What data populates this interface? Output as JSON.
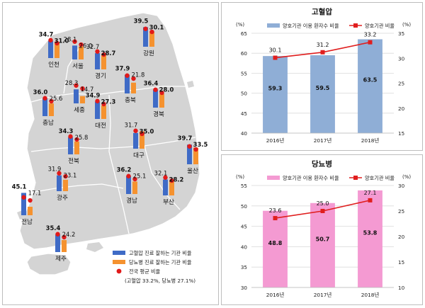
{
  "map": {
    "legend": {
      "bp_label": "고혈압 진료 잘하는 기관 비율",
      "db_label": "당뇨병 진료 잘하는 기관 비율",
      "avg_label": "전국 평균 비율",
      "avg_note": "(고혈압 33.2%, 당뇨병 27.1%)"
    },
    "regions": [
      {
        "name": "인천",
        "bp": "34.7",
        "db": "31.0",
        "bp_bold": true,
        "db_bold": true
      },
      {
        "name": "서울",
        "bp": "28.1",
        "db": "26.0",
        "bp_bold": false,
        "db_bold": false
      },
      {
        "name": "경기",
        "bp": "32.7",
        "db": "28.7",
        "bp_bold": false,
        "db_bold": true
      },
      {
        "name": "강원",
        "bp": "39.5",
        "db": "30.1",
        "bp_bold": true,
        "db_bold": true
      },
      {
        "name": "충북",
        "bp": "37.9",
        "db": "21.8",
        "bp_bold": true,
        "db_bold": false
      },
      {
        "name": "세종",
        "bp": "28.3",
        "db": "14.7",
        "bp_bold": false,
        "db_bold": false
      },
      {
        "name": "충남",
        "bp": "36.0",
        "db": "25.6",
        "bp_bold": true,
        "db_bold": false
      },
      {
        "name": "대전",
        "bp": "34.9",
        "db": "27.3",
        "bp_bold": true,
        "db_bold": true
      },
      {
        "name": "경북",
        "bp": "36.4",
        "db": "28.0",
        "bp_bold": true,
        "db_bold": true
      },
      {
        "name": "전북",
        "bp": "34.3",
        "db": "25.8",
        "bp_bold": true,
        "db_bold": false
      },
      {
        "name": "대구",
        "bp": "31.7",
        "db": "35.0",
        "bp_bold": false,
        "db_bold": true
      },
      {
        "name": "울산",
        "bp": "39.7",
        "db": "33.5",
        "bp_bold": true,
        "db_bold": true
      },
      {
        "name": "경남",
        "bp": "36.2",
        "db": "25.1",
        "bp_bold": true,
        "db_bold": false
      },
      {
        "name": "광주",
        "bp": "31.9",
        "db": "23.1",
        "bp_bold": false,
        "db_bold": false
      },
      {
        "name": "부산",
        "bp": "32.1",
        "db": "28.2",
        "bp_bold": false,
        "db_bold": true
      },
      {
        "name": "전남",
        "bp": "45.1",
        "db": "17.1",
        "bp_bold": true,
        "db_bold": false
      },
      {
        "name": "제주",
        "bp": "35.4",
        "db": "24.2",
        "bp_bold": true,
        "db_bold": false
      }
    ]
  },
  "chart_data": [
    {
      "type": "bar",
      "title": "고혈압",
      "categories": [
        "2016년",
        "2017년",
        "2018년"
      ],
      "left_unit": "(%)",
      "right_unit": "(%)",
      "ylim": [
        40,
        65
      ],
      "y_ticks": [
        40,
        45,
        50,
        55,
        60,
        65
      ],
      "y2lim": [
        15,
        35
      ],
      "y2_ticks": [
        15,
        20,
        25,
        30,
        35
      ],
      "series": [
        {
          "name": "양호기관 이용 환자수 비율",
          "kind": "bar",
          "axis": "left",
          "values": [
            59.3,
            59.5,
            63.5
          ],
          "color": "#8faed6"
        },
        {
          "name": "양호기관 비율",
          "kind": "line",
          "axis": "right",
          "values": [
            30.1,
            31.2,
            33.2
          ],
          "color": "#e01e1e"
        }
      ],
      "grid": true,
      "legend": "top"
    },
    {
      "type": "bar",
      "title": "당뇨병",
      "categories": [
        "2016년",
        "2017년",
        "2018년"
      ],
      "left_unit": "(%)",
      "right_unit": "(%)",
      "ylim": [
        30,
        55
      ],
      "y_ticks": [
        30,
        35,
        40,
        45,
        50,
        55
      ],
      "y2lim": [
        10,
        30
      ],
      "y2_ticks": [
        10,
        15,
        20,
        25,
        30
      ],
      "series": [
        {
          "name": "양호기관 이용 환자수 비율",
          "kind": "bar",
          "axis": "left",
          "values": [
            48.8,
            50.7,
            53.8
          ],
          "color": "#f49ad2"
        },
        {
          "name": "양호기관 비율",
          "kind": "line",
          "axis": "right",
          "values": [
            23.6,
            25.0,
            27.1
          ],
          "color": "#e01e1e"
        }
      ],
      "grid": true,
      "legend": "top"
    }
  ]
}
